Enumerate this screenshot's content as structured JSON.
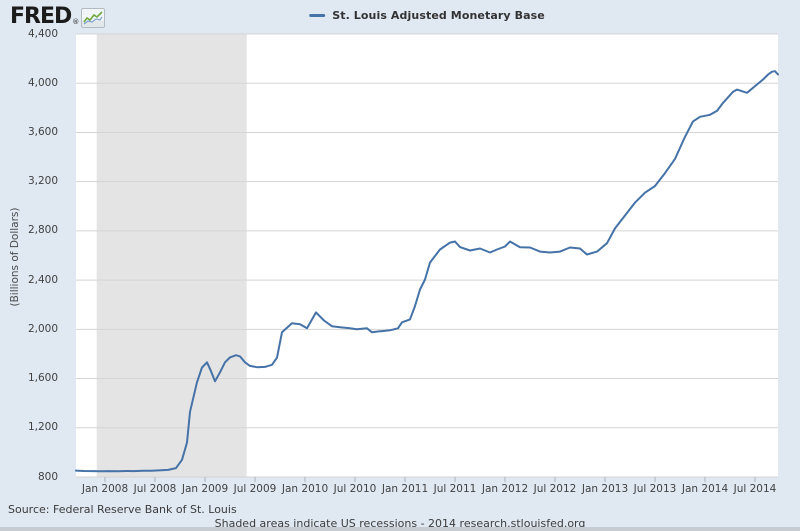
{
  "header": {
    "logo_text": "FRED",
    "logo_reg": "®"
  },
  "legend": {
    "series_label": "St. Louis Adjusted Monetary Base"
  },
  "axes": {
    "y_title": "(Billions of Dollars)",
    "y_ticks": [
      {
        "value": 800,
        "label": "800"
      },
      {
        "value": 1200,
        "label": "1,200"
      },
      {
        "value": 1600,
        "label": "1,600"
      },
      {
        "value": 2000,
        "label": "2,000"
      },
      {
        "value": 2400,
        "label": "2,400"
      },
      {
        "value": 2800,
        "label": "2,800"
      },
      {
        "value": 3200,
        "label": "3,200"
      },
      {
        "value": 3600,
        "label": "3,600"
      },
      {
        "value": 4000,
        "label": "4,000"
      },
      {
        "value": 4400,
        "label": "4,400"
      }
    ],
    "x_ticks": [
      {
        "year": 2008.0,
        "label": "Jan 2008"
      },
      {
        "year": 2008.5,
        "label": "Jul 2008"
      },
      {
        "year": 2009.0,
        "label": "Jan 2009"
      },
      {
        "year": 2009.5,
        "label": "Jul 2009"
      },
      {
        "year": 2010.0,
        "label": "Jan 2010"
      },
      {
        "year": 2010.5,
        "label": "Jul 2010"
      },
      {
        "year": 2011.0,
        "label": "Jan 2011"
      },
      {
        "year": 2011.5,
        "label": "Jul 2011"
      },
      {
        "year": 2012.0,
        "label": "Jan 2012"
      },
      {
        "year": 2012.5,
        "label": "Jul 2012"
      },
      {
        "year": 2013.0,
        "label": "Jan 2013"
      },
      {
        "year": 2013.5,
        "label": "Jul 2013"
      },
      {
        "year": 2014.0,
        "label": "Jan 2014"
      },
      {
        "year": 2014.5,
        "label": "Jul 2014"
      }
    ]
  },
  "footer": {
    "source": "Source: Federal Reserve Bank of St. Louis",
    "note": "Shaded areas indicate US recessions - 2014 research.stlouisfed.org"
  },
  "colors": {
    "line": "#4572a7",
    "recession_band": "#e4e4e4",
    "plot_bg": "#ffffff",
    "page_bg": "#e0e8f1",
    "gridline": "#d5d5d5",
    "tick_mark": "#a7b0ba",
    "logo_icon_green": "#6fa83f",
    "logo_icon_blue": "#7ca3d4"
  },
  "chart_data": {
    "type": "line",
    "title": "St. Louis Adjusted Monetary Base",
    "xlabel": "",
    "ylabel": "(Billions of Dollars)",
    "ylim": [
      800,
      4400
    ],
    "x_range_years": [
      2007.71,
      2014.73
    ],
    "grid": "horizontal",
    "legend_position": "top-center",
    "shaded_region": {
      "label": "US recession (Dec 2007 - Jun 2009)",
      "start_year": 2007.917,
      "end_year": 2009.417
    },
    "series": [
      {
        "name": "St. Louis Adjusted Monetary Base",
        "units": "Billions of Dollars",
        "points": [
          [
            2007.71,
            852
          ],
          [
            2007.79,
            849
          ],
          [
            2007.88,
            848
          ],
          [
            2007.96,
            847
          ],
          [
            2008.04,
            848
          ],
          [
            2008.13,
            846
          ],
          [
            2008.21,
            849
          ],
          [
            2008.29,
            848
          ],
          [
            2008.38,
            850
          ],
          [
            2008.46,
            851
          ],
          [
            2008.54,
            854
          ],
          [
            2008.63,
            858
          ],
          [
            2008.71,
            872
          ],
          [
            2008.77,
            940
          ],
          [
            2008.82,
            1080
          ],
          [
            2008.85,
            1330
          ],
          [
            2008.92,
            1570
          ],
          [
            2008.97,
            1690
          ],
          [
            2009.02,
            1732
          ],
          [
            2009.06,
            1660
          ],
          [
            2009.1,
            1578
          ],
          [
            2009.15,
            1651
          ],
          [
            2009.2,
            1732
          ],
          [
            2009.25,
            1772
          ],
          [
            2009.31,
            1790
          ],
          [
            2009.35,
            1780
          ],
          [
            2009.4,
            1732
          ],
          [
            2009.45,
            1703
          ],
          [
            2009.52,
            1692
          ],
          [
            2009.6,
            1695
          ],
          [
            2009.67,
            1712
          ],
          [
            2009.72,
            1770
          ],
          [
            2009.77,
            1976
          ],
          [
            2009.87,
            2049
          ],
          [
            2009.95,
            2041
          ],
          [
            2010.02,
            2008
          ],
          [
            2010.11,
            2138
          ],
          [
            2010.19,
            2072
          ],
          [
            2010.27,
            2025
          ],
          [
            2010.35,
            2017
          ],
          [
            2010.44,
            2010
          ],
          [
            2010.52,
            2001
          ],
          [
            2010.62,
            2008
          ],
          [
            2010.67,
            1976
          ],
          [
            2010.75,
            1984
          ],
          [
            2010.85,
            1992
          ],
          [
            2010.93,
            2008
          ],
          [
            2010.97,
            2057
          ],
          [
            2011.05,
            2081
          ],
          [
            2011.1,
            2190
          ],
          [
            2011.15,
            2324
          ],
          [
            2011.2,
            2405
          ],
          [
            2011.25,
            2543
          ],
          [
            2011.35,
            2649
          ],
          [
            2011.45,
            2705
          ],
          [
            2011.5,
            2714
          ],
          [
            2011.55,
            2668
          ],
          [
            2011.65,
            2641
          ],
          [
            2011.75,
            2657
          ],
          [
            2011.85,
            2624
          ],
          [
            2011.92,
            2649
          ],
          [
            2012.0,
            2673
          ],
          [
            2012.05,
            2714
          ],
          [
            2012.15,
            2667
          ],
          [
            2012.25,
            2665
          ],
          [
            2012.35,
            2632
          ],
          [
            2012.45,
            2624
          ],
          [
            2012.55,
            2632
          ],
          [
            2012.65,
            2665
          ],
          [
            2012.75,
            2657
          ],
          [
            2012.82,
            2608
          ],
          [
            2012.92,
            2632
          ],
          [
            2013.02,
            2700
          ],
          [
            2013.1,
            2820
          ],
          [
            2013.2,
            2925
          ],
          [
            2013.3,
            3030
          ],
          [
            2013.4,
            3110
          ],
          [
            2013.5,
            3165
          ],
          [
            2013.6,
            3270
          ],
          [
            2013.7,
            3385
          ],
          [
            2013.8,
            3565
          ],
          [
            2013.88,
            3690
          ],
          [
            2013.95,
            3727
          ],
          [
            2014.05,
            3743
          ],
          [
            2014.12,
            3775
          ],
          [
            2014.18,
            3840
          ],
          [
            2014.28,
            3930
          ],
          [
            2014.32,
            3948
          ],
          [
            2014.42,
            3922
          ],
          [
            2014.52,
            3990
          ],
          [
            2014.58,
            4030
          ],
          [
            2014.63,
            4070
          ],
          [
            2014.67,
            4094
          ],
          [
            2014.7,
            4098
          ],
          [
            2014.73,
            4072
          ]
        ]
      }
    ]
  }
}
